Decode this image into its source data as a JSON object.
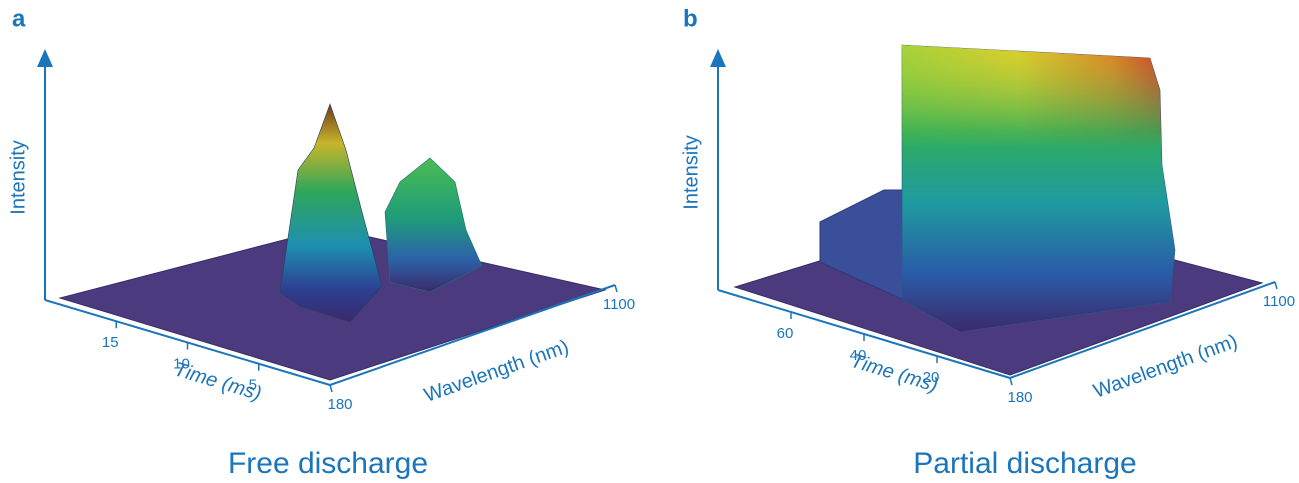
{
  "chart_data": [
    {
      "type": "surface3d",
      "panel_label": "a",
      "title": "Free discharge",
      "x_label": "Time (ms)",
      "y_label": "Wavelength (nm)",
      "z_label": "Intensity",
      "xlim": [
        20,
        0
      ],
      "xticks": [
        15,
        10,
        5
      ],
      "ylim": [
        180,
        1100
      ],
      "yticks": [
        180,
        1100
      ],
      "color": "#1b75bb"
    },
    {
      "type": "surface3d",
      "panel_label": "b",
      "title": "Partial discharge",
      "x_label": "Time (ms)",
      "y_label": "Wavelength (nm)",
      "z_label": "Intensity",
      "xlim": [
        80,
        0
      ],
      "xticks": [
        60,
        40,
        20
      ],
      "ylim": [
        180,
        1100
      ],
      "yticks": [
        180,
        1100
      ],
      "color": "#1b75bb"
    }
  ]
}
